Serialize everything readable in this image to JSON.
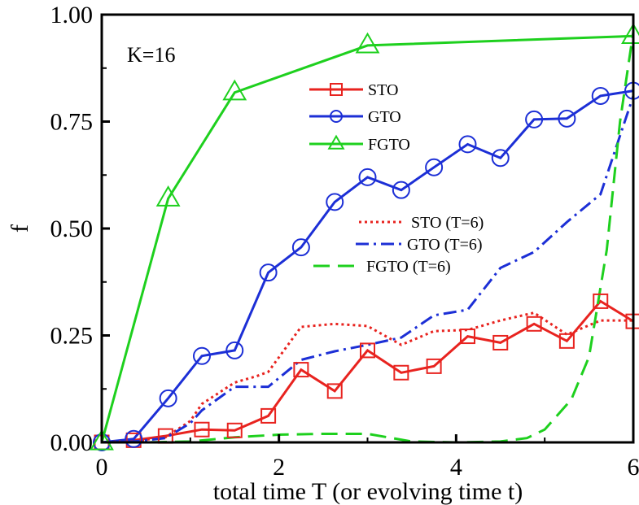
{
  "chart_data": {
    "type": "line",
    "title": "",
    "xlabel": "total time T (or evolving time t)",
    "ylabel": "f",
    "xlim": [
      0,
      6
    ],
    "ylim": [
      0,
      1
    ],
    "xticks": [
      0,
      2,
      4,
      6
    ],
    "xtick_labels": [
      "0",
      "2",
      "4",
      "6"
    ],
    "yticks": [
      0,
      0.25,
      0.5,
      0.75,
      1.0
    ],
    "ytick_labels": [
      "0.00",
      "0.25",
      "0.50",
      "0.75",
      "1.00"
    ],
    "grid": false,
    "legend_placement": "center",
    "annotation": "K=16",
    "series": [
      {
        "name": "STO",
        "color": "#e8231f",
        "style": "solid",
        "marker": "square",
        "x": [
          0,
          0.36,
          0.72,
          1.13,
          1.5,
          1.88,
          2.25,
          2.63,
          3.0,
          3.38,
          3.75,
          4.13,
          4.5,
          4.88,
          5.25,
          5.63,
          6.0
        ],
        "y": [
          0.0,
          0.005,
          0.015,
          0.03,
          0.028,
          0.062,
          0.17,
          0.12,
          0.215,
          0.163,
          0.178,
          0.248,
          0.233,
          0.277,
          0.237,
          0.33,
          0.283
        ]
      },
      {
        "name": "GTO",
        "color": "#1c2fd6",
        "style": "solid",
        "marker": "circle",
        "x": [
          0,
          0.36,
          0.75,
          1.13,
          1.5,
          1.88,
          2.25,
          2.63,
          3.0,
          3.38,
          3.75,
          4.13,
          4.5,
          4.88,
          5.25,
          5.63,
          6.0
        ],
        "y": [
          0.0,
          0.008,
          0.103,
          0.202,
          0.215,
          0.397,
          0.456,
          0.562,
          0.62,
          0.59,
          0.643,
          0.697,
          0.665,
          0.755,
          0.757,
          0.81,
          0.822
        ]
      },
      {
        "name": "FGTO",
        "color": "#1ed01e",
        "style": "solid",
        "marker": "triangle",
        "x": [
          0,
          0.75,
          1.5,
          3.0,
          6.0
        ],
        "y": [
          0.0,
          0.57,
          0.818,
          0.928,
          0.95
        ]
      },
      {
        "name": "STO (T=6)",
        "color": "#e8231f",
        "style": "dotted",
        "marker": "none",
        "x": [
          0,
          0.36,
          0.72,
          1.0,
          1.13,
          1.5,
          1.75,
          1.88,
          2.25,
          2.63,
          3.0,
          3.38,
          3.75,
          4.13,
          4.5,
          4.88,
          5.25,
          5.63,
          6.0
        ],
        "y": [
          0.0,
          0.003,
          0.012,
          0.05,
          0.09,
          0.14,
          0.155,
          0.165,
          0.27,
          0.277,
          0.272,
          0.228,
          0.26,
          0.263,
          0.285,
          0.303,
          0.252,
          0.285,
          0.285
        ]
      },
      {
        "name": "GTO (T=6)",
        "color": "#1c2fd6",
        "style": "dashdot",
        "marker": "none",
        "x": [
          0,
          0.36,
          0.72,
          1.0,
          1.13,
          1.5,
          1.88,
          2.25,
          2.63,
          3.0,
          3.38,
          3.75,
          4.13,
          4.5,
          4.88,
          5.25,
          5.63,
          6.0
        ],
        "y": [
          0.0,
          0.002,
          0.01,
          0.045,
          0.075,
          0.13,
          0.13,
          0.193,
          0.213,
          0.228,
          0.245,
          0.297,
          0.31,
          0.408,
          0.445,
          0.515,
          0.58,
          0.81
        ]
      },
      {
        "name": "FGTO (T=6)",
        "color": "#1ed01e",
        "style": "dashed",
        "marker": "none",
        "x": [
          0,
          0.5,
          1.0,
          1.5,
          2.0,
          2.5,
          3.0,
          3.5,
          4.0,
          4.5,
          4.8,
          5.0,
          5.3,
          5.5,
          5.7,
          5.85,
          6.0
        ],
        "y": [
          0.0,
          0.0,
          0.002,
          0.012,
          0.018,
          0.02,
          0.02,
          0.002,
          0.0,
          0.002,
          0.01,
          0.03,
          0.1,
          0.2,
          0.45,
          0.75,
          0.96
        ]
      }
    ]
  }
}
